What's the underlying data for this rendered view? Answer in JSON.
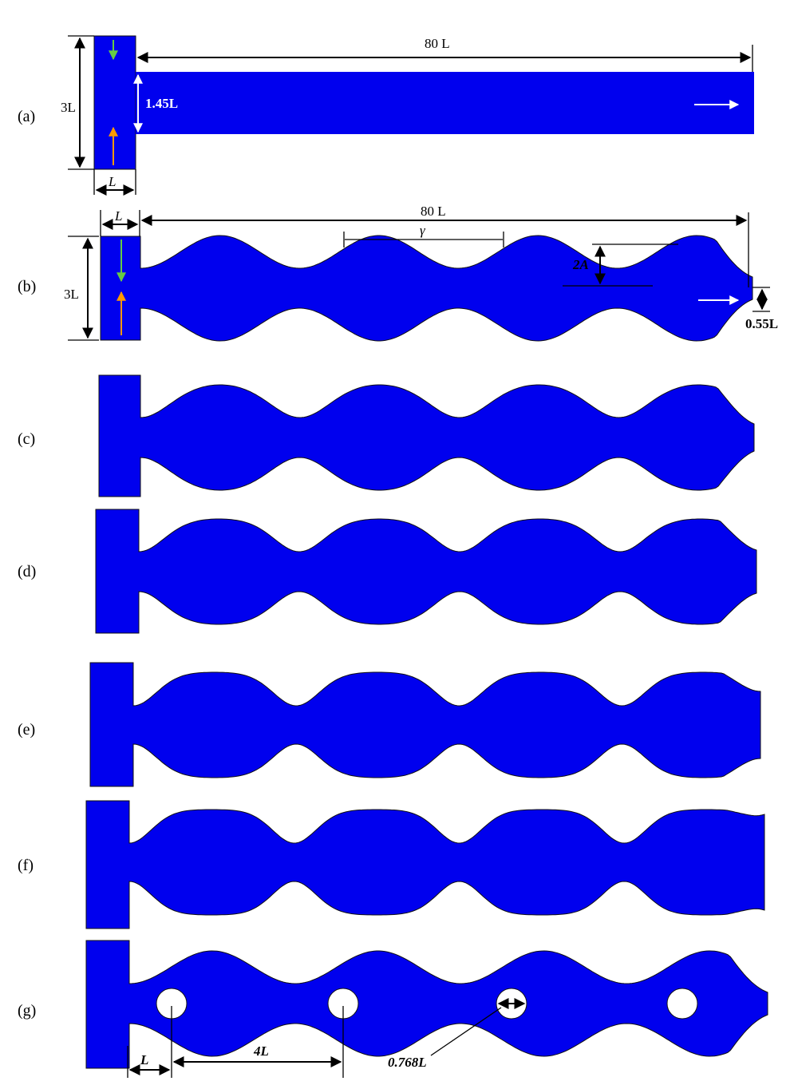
{
  "panels": {
    "a": {
      "label": "(a)",
      "height_label": "3L",
      "width_label": "L",
      "length_label": "80 L",
      "outlet_label": "1.45L"
    },
    "b": {
      "label": "(b)",
      "height_label": "3L",
      "width_label": "L",
      "length_label": "80 L",
      "wavelength_label": "γ",
      "amplitude_label": "2A",
      "outlet_label": "0.55L"
    },
    "c": {
      "label": "(c)"
    },
    "d": {
      "label": "(d)"
    },
    "e": {
      "label": "(e)"
    },
    "f": {
      "label": "(f)"
    },
    "g": {
      "label": "(g)",
      "offset_label": "L",
      "spacing_label": "4L",
      "diameter_label": "0.768L"
    }
  },
  "colors": {
    "channel": "#0000ee",
    "inlet_top_arrow": "#66cc44",
    "inlet_bottom_arrow": "#ff9900",
    "outlet_arrow": "#ffffff"
  }
}
